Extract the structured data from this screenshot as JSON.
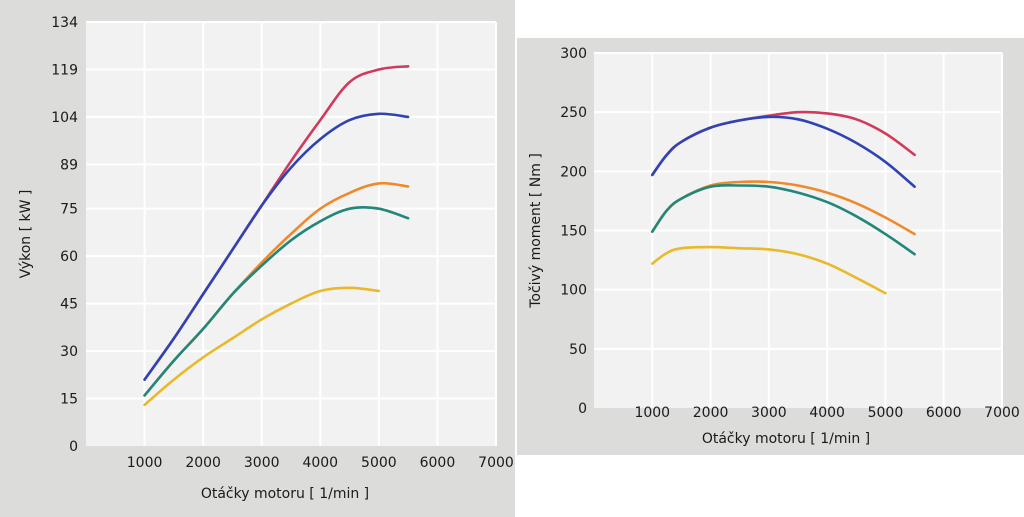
{
  "chart_data": [
    {
      "type": "line",
      "xlabel": "Otáčky motoru [ 1/min ]",
      "ylabel": "Výkon [ kW ]",
      "xlim": [
        0,
        7000
      ],
      "ylim": [
        0,
        134
      ],
      "xticks": [
        1000,
        2000,
        3000,
        4000,
        5000,
        6000,
        7000
      ],
      "yticks": [
        0,
        15,
        30,
        45,
        60,
        75,
        89,
        104,
        119,
        134
      ],
      "grid": true,
      "series": [
        {
          "color": "#d23a5c",
          "x": [
            1000,
            1500,
            2000,
            2500,
            3000,
            3500,
            4000,
            4500,
            5000,
            5500
          ],
          "y": [
            21,
            34,
            48,
            62,
            76,
            90,
            103,
            115,
            119,
            120
          ]
        },
        {
          "color": "#2f44b4",
          "x": [
            1000,
            1500,
            2000,
            2500,
            3000,
            3500,
            4000,
            4500,
            5000,
            5500
          ],
          "y": [
            21,
            34,
            48,
            62,
            76,
            88,
            97,
            103,
            105,
            104
          ]
        },
        {
          "color": "#ee8a2c",
          "x": [
            1000,
            1500,
            2000,
            2500,
            3000,
            3500,
            4000,
            4500,
            5000,
            5500
          ],
          "y": [
            16,
            27,
            37,
            48,
            58,
            67,
            75,
            80,
            83,
            82
          ]
        },
        {
          "color": "#23867a",
          "x": [
            1000,
            1500,
            2000,
            2500,
            3000,
            3500,
            4000,
            4500,
            5000,
            5500
          ],
          "y": [
            16,
            27,
            37,
            48,
            57,
            65,
            71,
            75,
            75,
            72
          ]
        },
        {
          "color": "#e9b92a",
          "x": [
            1000,
            1500,
            2000,
            2500,
            3000,
            3500,
            4000,
            4500,
            5000
          ],
          "y": [
            13,
            21,
            28,
            34,
            40,
            45,
            49,
            50,
            49
          ]
        }
      ]
    },
    {
      "type": "line",
      "xlabel": "Otáčky motoru [ 1/min ]",
      "ylabel": "Točivý moment [ Nm ]",
      "xlim": [
        0,
        7000
      ],
      "ylim": [
        0,
        300
      ],
      "xticks": [
        1000,
        2000,
        3000,
        4000,
        5000,
        6000,
        7000
      ],
      "yticks": [
        0,
        50,
        100,
        150,
        200,
        250,
        300
      ],
      "grid": true,
      "series": [
        {
          "color": "#d23a5c",
          "x": [
            1000,
            1250,
            1500,
            2000,
            2500,
            3000,
            3500,
            4000,
            4500,
            5000,
            5500
          ],
          "y": [
            197,
            214,
            225,
            237,
            243,
            247,
            250,
            249,
            244,
            232,
            214
          ]
        },
        {
          "color": "#2f44b4",
          "x": [
            1000,
            1250,
            1500,
            2000,
            2500,
            3000,
            3500,
            4000,
            4500,
            5000,
            5500
          ],
          "y": [
            197,
            214,
            225,
            237,
            243,
            246,
            244,
            236,
            224,
            208,
            187
          ]
        },
        {
          "color": "#ee8a2c",
          "x": [
            1000,
            1250,
            1500,
            2000,
            2500,
            3000,
            3500,
            4000,
            4500,
            5000,
            5500
          ],
          "y": [
            149,
            167,
            177,
            188,
            191,
            191,
            188,
            182,
            173,
            161,
            147
          ]
        },
        {
          "color": "#23867a",
          "x": [
            1000,
            1250,
            1500,
            2000,
            2500,
            3000,
            3500,
            4000,
            4500,
            5000,
            5500
          ],
          "y": [
            149,
            167,
            177,
            187,
            188,
            187,
            182,
            174,
            162,
            147,
            130
          ]
        },
        {
          "color": "#e9b92a",
          "x": [
            1000,
            1250,
            1500,
            2000,
            2500,
            3000,
            3500,
            4000,
            4500,
            5000
          ],
          "y": [
            122,
            131,
            135,
            136,
            135,
            134,
            130,
            122,
            110,
            97
          ]
        }
      ]
    }
  ]
}
